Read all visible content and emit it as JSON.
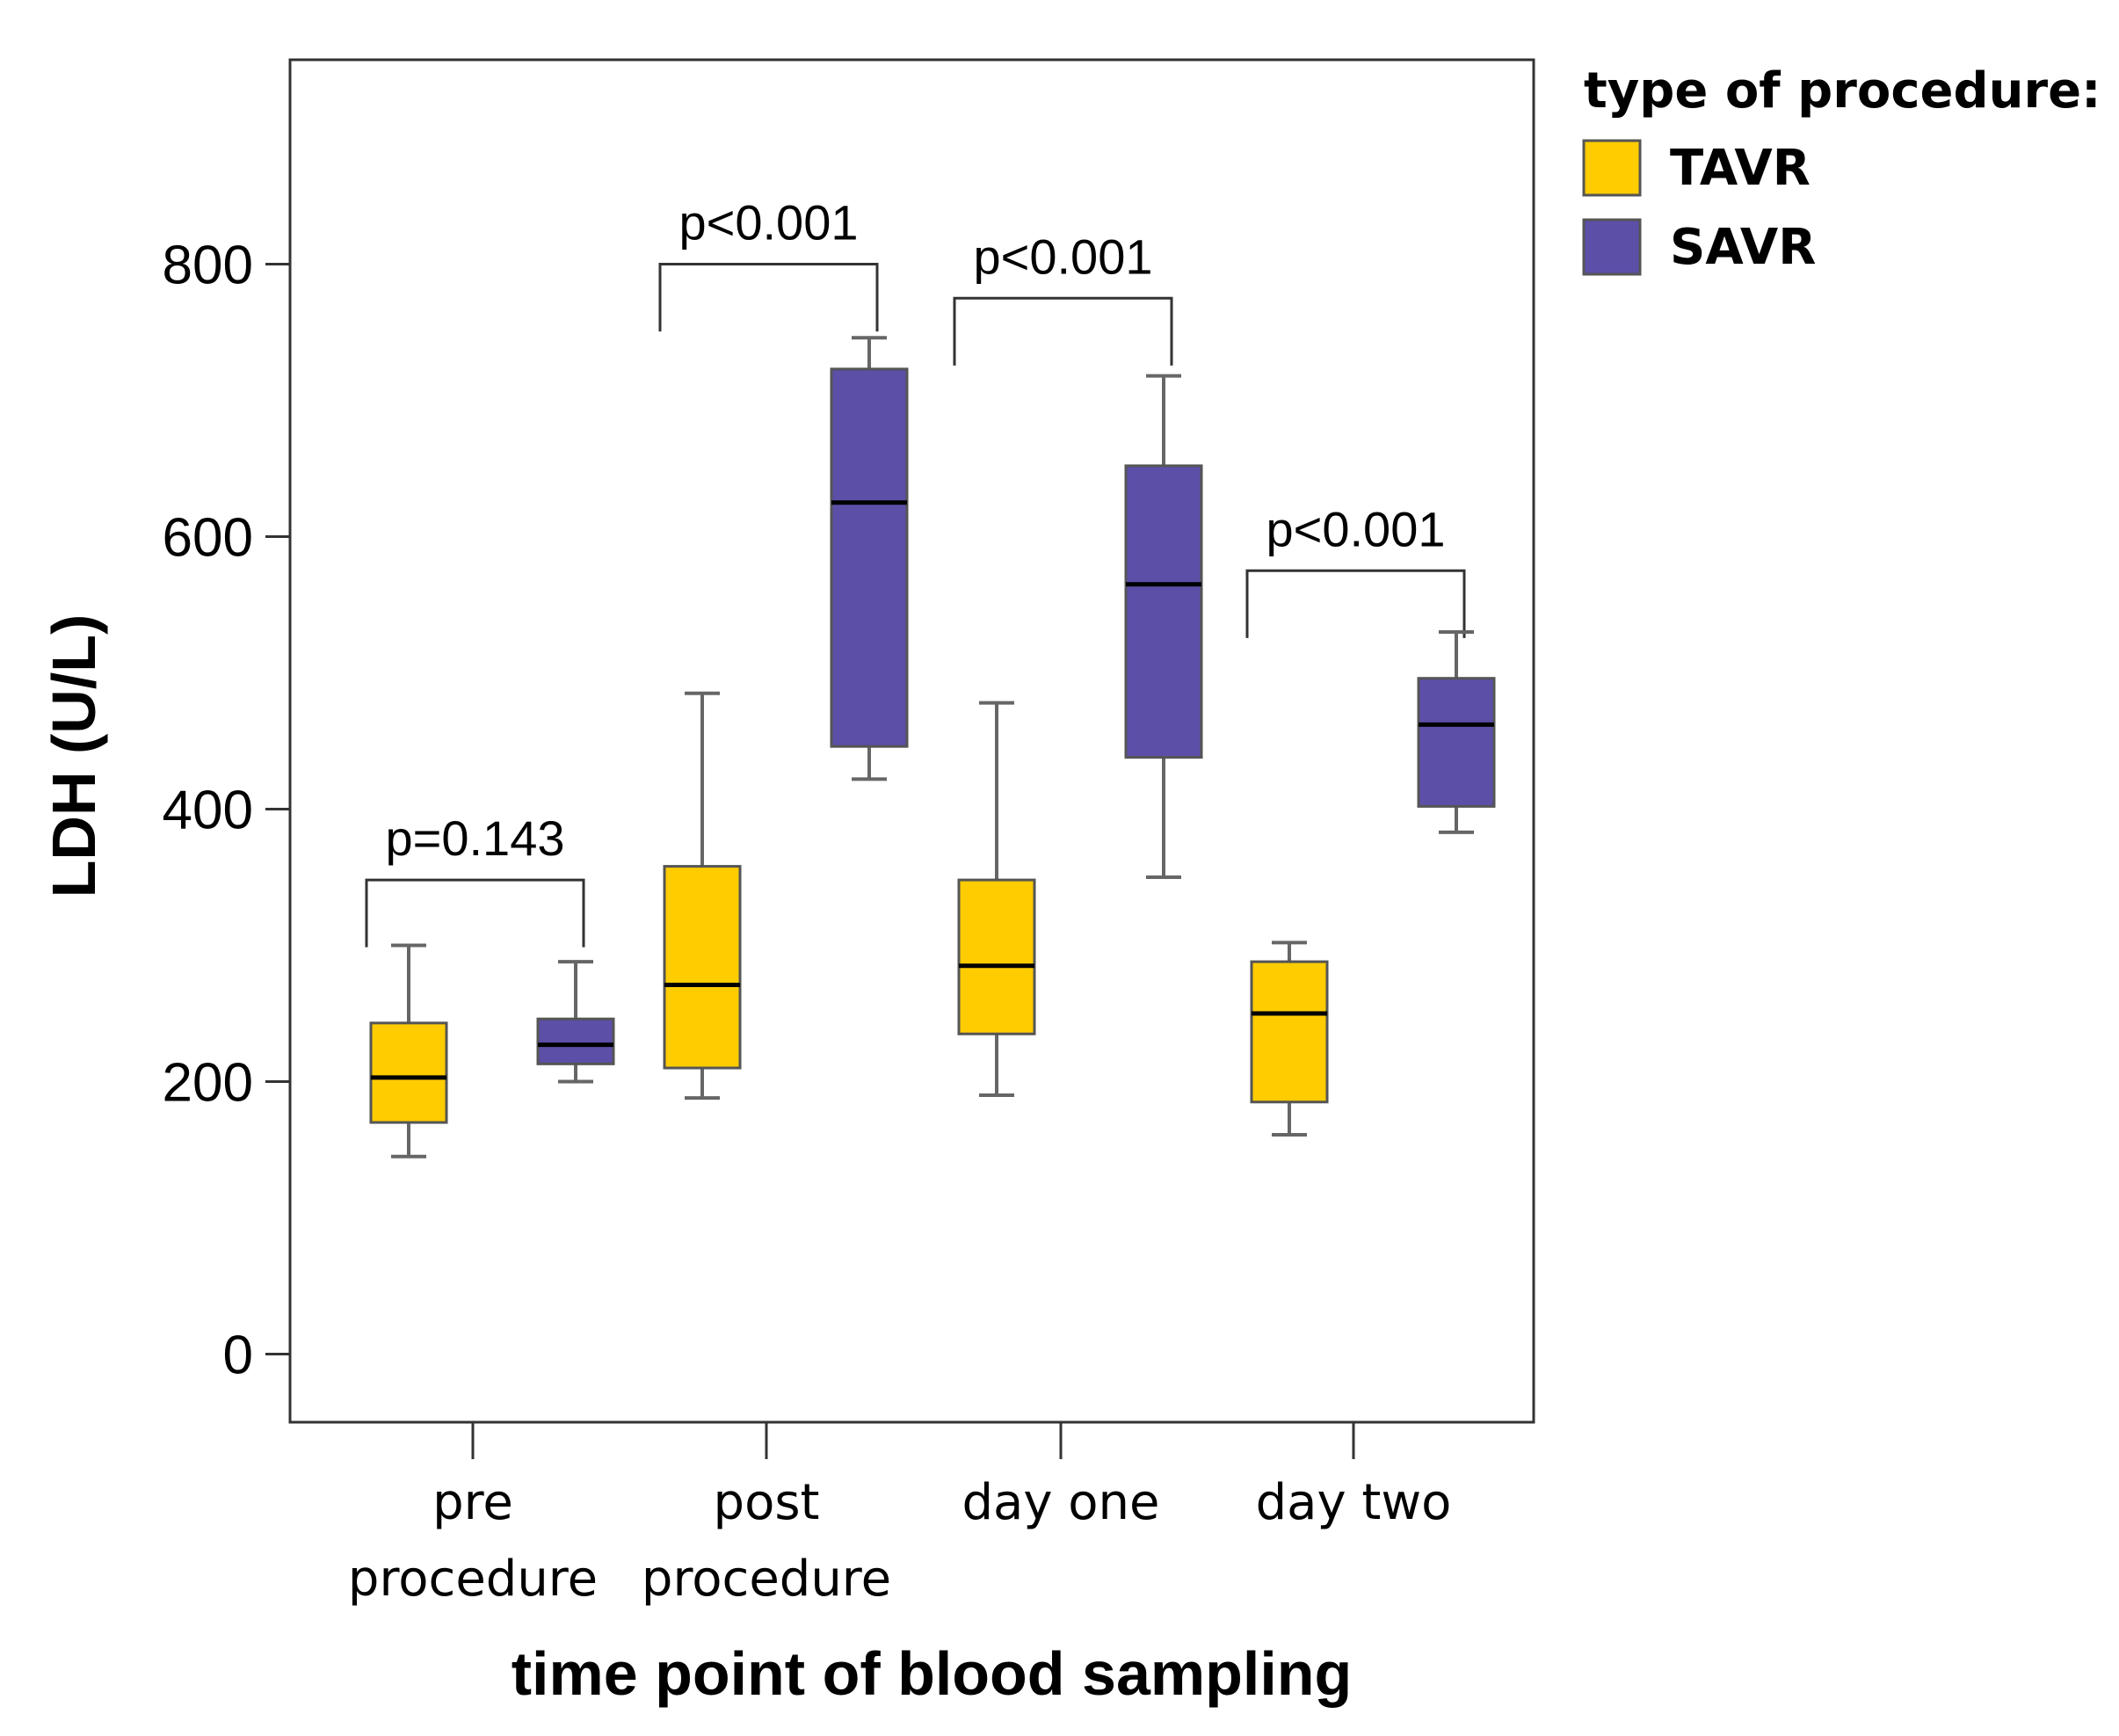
{
  "chart_data": {
    "type": "boxplot",
    "xlabel": "time point of blood sampling",
    "ylabel": "LDH (U/L)",
    "ylim": [
      -50,
      950
    ],
    "yticks": [
      0,
      200,
      400,
      600,
      800
    ],
    "categories": [
      {
        "line1": "pre",
        "line2": "procedure"
      },
      {
        "line1": "post",
        "line2": "procedure"
      },
      {
        "line1": "day one",
        "line2": ""
      },
      {
        "line1": "day two",
        "line2": ""
      }
    ],
    "legend": {
      "title": "type of procedure:",
      "position": "right"
    },
    "series": [
      {
        "name": "TAVR",
        "color": "#FFCC00",
        "boxes": [
          {
            "min": 145,
            "q1": 170,
            "median": 203,
            "q3": 243,
            "max": 300
          },
          {
            "min": 188,
            "q1": 210,
            "median": 271,
            "q3": 358,
            "max": 485
          },
          {
            "min": 190,
            "q1": 235,
            "median": 285,
            "q3": 348,
            "max": 478
          },
          {
            "min": 161,
            "q1": 185,
            "median": 250,
            "q3": 288,
            "max": 302
          }
        ]
      },
      {
        "name": "SAVR",
        "color": "#5B4FA8",
        "boxes": [
          {
            "min": 200,
            "q1": 213,
            "median": 227,
            "q3": 246,
            "max": 288
          },
          {
            "min": 422,
            "q1": 446,
            "median": 625,
            "q3": 723,
            "max": 746
          },
          {
            "min": 350,
            "q1": 438,
            "median": 565,
            "q3": 652,
            "max": 718
          },
          {
            "min": 383,
            "q1": 402,
            "median": 462,
            "q3": 496,
            "max": 530
          }
        ]
      }
    ],
    "annotations": [
      {
        "category": 0,
        "text": "p=0.143",
        "bracket_y": 348,
        "bracket_drop": 38
      },
      {
        "category": 1,
        "text": "p<0.001",
        "bracket_y": 800,
        "bracket_drop": 38
      },
      {
        "category": 2,
        "text": "p<0.001",
        "bracket_y": 775,
        "bracket_drop": 38
      },
      {
        "category": 3,
        "text": "p<0.001",
        "bracket_y": 575,
        "bracket_drop": 38
      }
    ]
  }
}
